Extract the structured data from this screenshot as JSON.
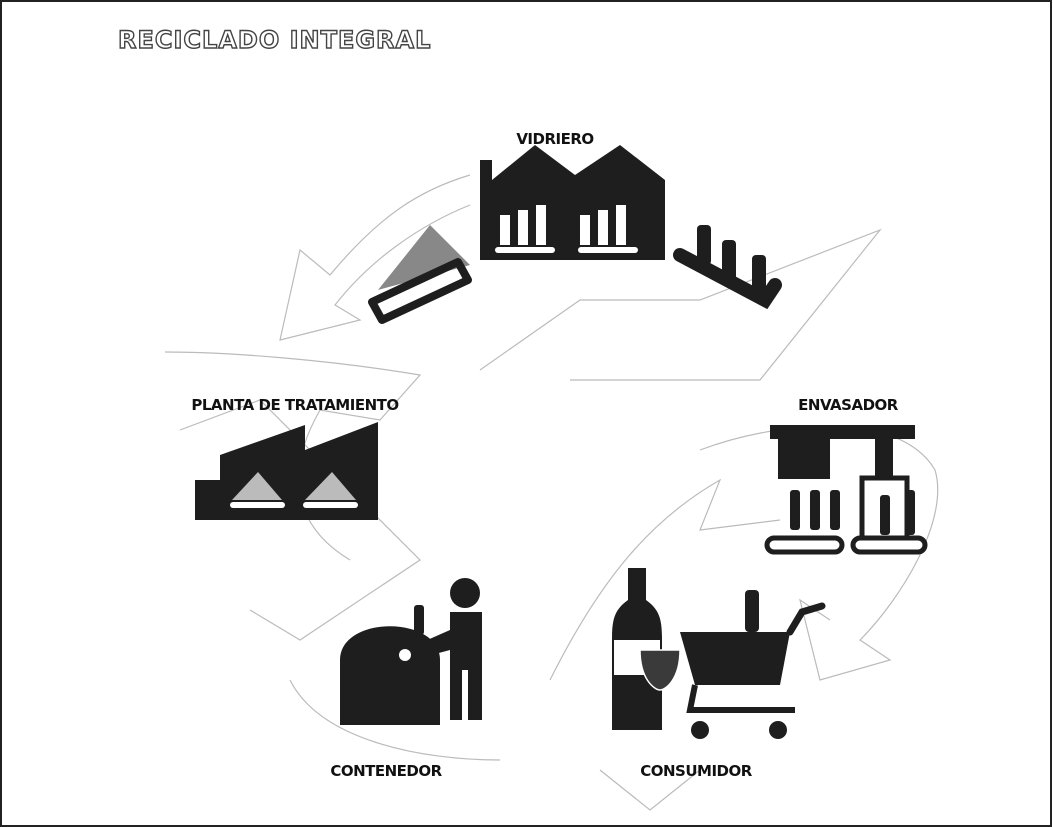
{
  "title": "RECICLADO INTEGRAL",
  "nodes": [
    {
      "label": "VIDRIERO"
    },
    {
      "label": "PLANTA DE TRATAMIENTO"
    },
    {
      "label": "ENVASADOR"
    },
    {
      "label": "CONTENEDOR"
    },
    {
      "label": "CONSUMIDOR"
    }
  ]
}
